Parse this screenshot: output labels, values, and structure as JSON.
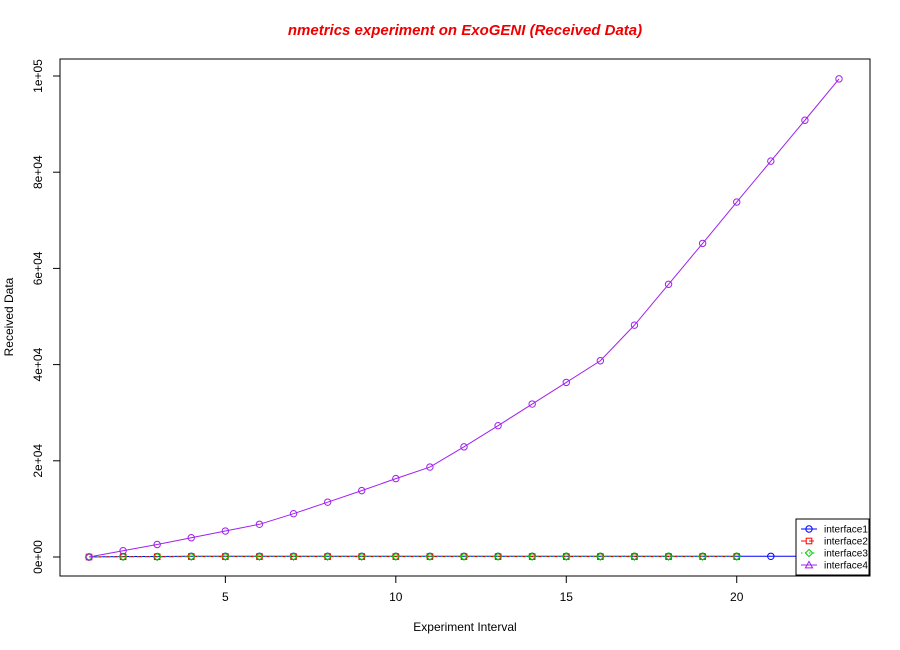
{
  "chart_data": {
    "type": "line",
    "title": "nmetrics experiment on ExoGENI (Received Data)",
    "title_color": "#ee0000",
    "xlabel": "Experiment Interval",
    "ylabel": "Received Data",
    "xlim": [
      1,
      23
    ],
    "ylim": [
      0,
      100000
    ],
    "x_ticks": [
      5,
      10,
      15,
      20
    ],
    "y_ticks": [
      0,
      20000,
      40000,
      60000,
      80000,
      100000
    ],
    "y_tick_labels": [
      "0e+00",
      "2e+04",
      "4e+04",
      "6e+04",
      "8e+04",
      "1e+05"
    ],
    "x": [
      1,
      2,
      3,
      4,
      5,
      6,
      7,
      8,
      9,
      10,
      11,
      12,
      13,
      14,
      15,
      16,
      17,
      18,
      19,
      20,
      21,
      22,
      23
    ],
    "legend_position": "bottom-right",
    "grid": false,
    "series": [
      {
        "name": "interface1",
        "color": "#0000ff",
        "marker": "circle",
        "dash": "solid",
        "values": [
          0,
          100,
          100,
          150,
          150,
          150,
          150,
          150,
          150,
          150,
          150,
          150,
          150,
          150,
          150,
          150,
          150,
          150,
          150,
          150,
          150,
          150,
          150
        ]
      },
      {
        "name": "interface2",
        "color": "#ff0000",
        "marker": "square",
        "dash": "dashed",
        "values": [
          0,
          50,
          50,
          80,
          80,
          80,
          80,
          80,
          80,
          80,
          80,
          80,
          80,
          80,
          80,
          80,
          80,
          80,
          80,
          80,
          null,
          null,
          null
        ]
      },
      {
        "name": "interface3",
        "color": "#00cc00",
        "marker": "diamond",
        "dash": "dotted",
        "values": [
          0,
          50,
          50,
          100,
          100,
          100,
          100,
          100,
          100,
          100,
          100,
          100,
          100,
          100,
          100,
          100,
          100,
          100,
          100,
          100,
          null,
          null,
          null
        ]
      },
      {
        "name": "interface4",
        "color": "#a020f0",
        "marker": "circle",
        "dash": "solid",
        "values": [
          0,
          1300,
          2600,
          4000,
          5400,
          6800,
          9000,
          11400,
          13800,
          16300,
          18700,
          22900,
          27300,
          31800,
          36300,
          40800,
          48200,
          56700,
          65200,
          73800,
          82300,
          90800,
          99400
        ]
      }
    ]
  }
}
